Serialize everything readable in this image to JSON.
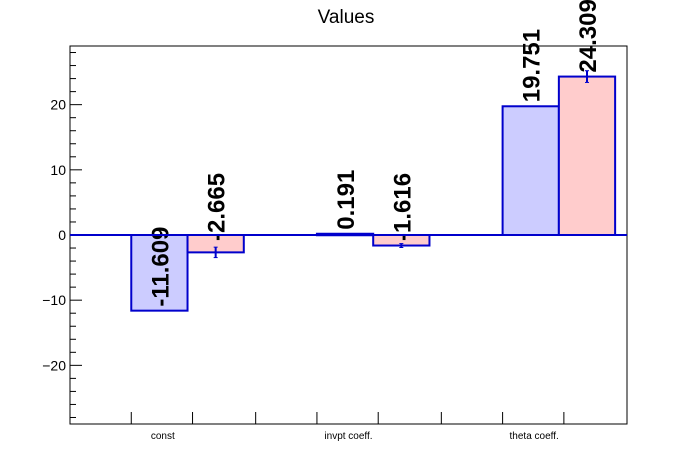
{
  "chart_data": {
    "type": "bar",
    "title": "Values",
    "xlabel": "",
    "ylabel": "",
    "categories": [
      "const",
      "invpt coeff.",
      "theta coeff."
    ],
    "ylim": [
      -29,
      29
    ],
    "yticks": [
      -20,
      -10,
      0,
      10,
      20
    ],
    "grid": false,
    "legend": "none",
    "series": [
      {
        "values": [
          -11.609,
          0.191,
          19.751
        ],
        "labels": [
          "-11.609",
          "0.191",
          "19.751"
        ],
        "errors": [
          0,
          0,
          0
        ],
        "fill": "#ccccff",
        "stroke": "#0000cc"
      },
      {
        "values": [
          -2.665,
          -1.616,
          24.309
        ],
        "labels": [
          "-2.665",
          "-1.616",
          "24.309"
        ],
        "errors": [
          0.8,
          0.3,
          0.9
        ],
        "fill": "#ffcccc",
        "stroke": "#0000cc"
      }
    ],
    "zero_line_color": "#0000cc"
  }
}
